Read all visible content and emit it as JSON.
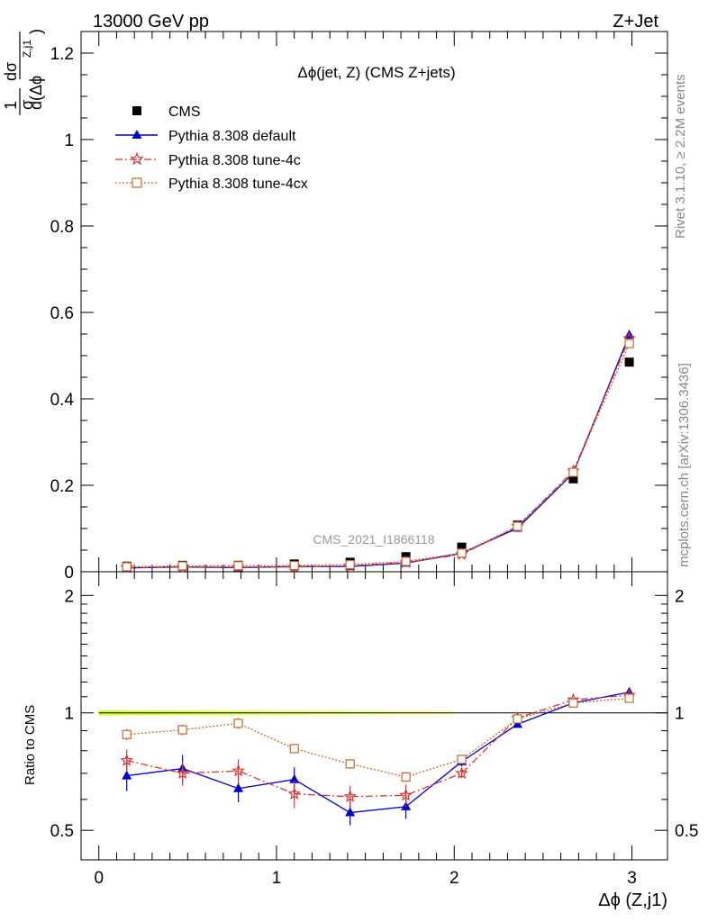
{
  "header": {
    "left": "13000 GeV pp",
    "right": "Z+Jet"
  },
  "side_labels": {
    "top": "Rivet 3.1.10, ≥ 2.2M events",
    "bottom": "mcplots.cern.ch [arXiv:1306.3436]"
  },
  "watermark": "CMS_2021_I1866118",
  "chart_data": [
    {
      "type": "scatter",
      "title": "Δϕ(jet, Z) (CMS Z+jets)",
      "ylabel": "1/σ dσ/d(Δϕ^{Z,j1})",
      "xlim": [
        -0.1,
        3.2
      ],
      "ylim": [
        0,
        1.25
      ],
      "yticks": [
        "0",
        "0.2",
        "0.4",
        "0.6",
        "0.8",
        "1",
        "1.2"
      ],
      "legend_position": "top-left",
      "x": [
        0.157,
        0.471,
        0.785,
        1.1,
        1.414,
        1.728,
        2.042,
        2.356,
        2.67,
        2.985
      ],
      "series": [
        {
          "name": "CMS",
          "marker": "square",
          "color": "#000000",
          "values": [
            0.013,
            0.015,
            0.015,
            0.018,
            0.022,
            0.035,
            0.057,
            0.108,
            0.215,
            0.485
          ]
        },
        {
          "name": "Pythia 8.308 default",
          "marker": "triangle",
          "color": "#0000cc",
          "dash": "solid",
          "values": [
            0.009,
            0.011,
            0.0095,
            0.012,
            0.012,
            0.02,
            0.043,
            0.101,
            0.228,
            0.548
          ]
        },
        {
          "name": "Pythia 8.308 tune-4c",
          "marker": "star",
          "color": "#dd3333",
          "dash": "dashdot",
          "values": [
            0.0098,
            0.0105,
            0.0105,
            0.011,
            0.0135,
            0.0215,
            0.04,
            0.105,
            0.233,
            0.54
          ]
        },
        {
          "name": "Pythia 8.308 tune-4cx",
          "marker": "open-square",
          "color": "#c8662a",
          "dash": "dotted",
          "values": [
            0.0115,
            0.0135,
            0.014,
            0.0145,
            0.0165,
            0.024,
            0.043,
            0.105,
            0.23,
            0.528
          ]
        }
      ]
    },
    {
      "type": "scatter",
      "ylabel": "Ratio to CMS",
      "xlabel": "Δϕ (Z,j1)",
      "ylog": true,
      "ylim": [
        0.42,
        2.3
      ],
      "yticks": [
        "0.5",
        "1",
        "2"
      ],
      "xticks": [
        "0",
        "1",
        "2",
        "3"
      ],
      "band": {
        "x_range": [
          0,
          2.0
        ],
        "colors": [
          "#ccff00",
          "#ffff99"
        ]
      },
      "x": [
        0.157,
        0.471,
        0.785,
        1.1,
        1.414,
        1.728,
        2.042,
        2.356,
        2.67,
        2.985
      ],
      "series": [
        {
          "name": "Pythia 8.308 default",
          "marker": "triangle",
          "color": "#0000cc",
          "dash": "solid",
          "values": [
            0.69,
            0.72,
            0.64,
            0.675,
            0.555,
            0.575,
            0.75,
            0.935,
            1.06,
            1.13
          ],
          "errors": [
            0.06,
            0.06,
            0.05,
            0.05,
            0.04,
            0.04,
            0.02,
            0.01,
            0.01,
            0.01
          ]
        },
        {
          "name": "Pythia 8.308 tune-4c",
          "marker": "star",
          "color": "#dd3333",
          "dash": "dashdot",
          "values": [
            0.755,
            0.7,
            0.71,
            0.62,
            0.61,
            0.615,
            0.7,
            0.97,
            1.08,
            1.11
          ],
          "errors": [
            0.05,
            0.05,
            0.05,
            0.05,
            0.04,
            0.04,
            0.02,
            0.01,
            0.01,
            0.01
          ]
        },
        {
          "name": "Pythia 8.308 tune-4cx",
          "marker": "open-square",
          "color": "#c8662a",
          "dash": "dotted",
          "values": [
            0.88,
            0.905,
            0.94,
            0.81,
            0.74,
            0.685,
            0.76,
            0.965,
            1.06,
            1.09
          ],
          "errors": [
            0.03,
            0.03,
            0.03,
            0.02,
            0.02,
            0.02,
            0.01,
            0.01,
            0.01,
            0.01
          ]
        }
      ]
    }
  ]
}
